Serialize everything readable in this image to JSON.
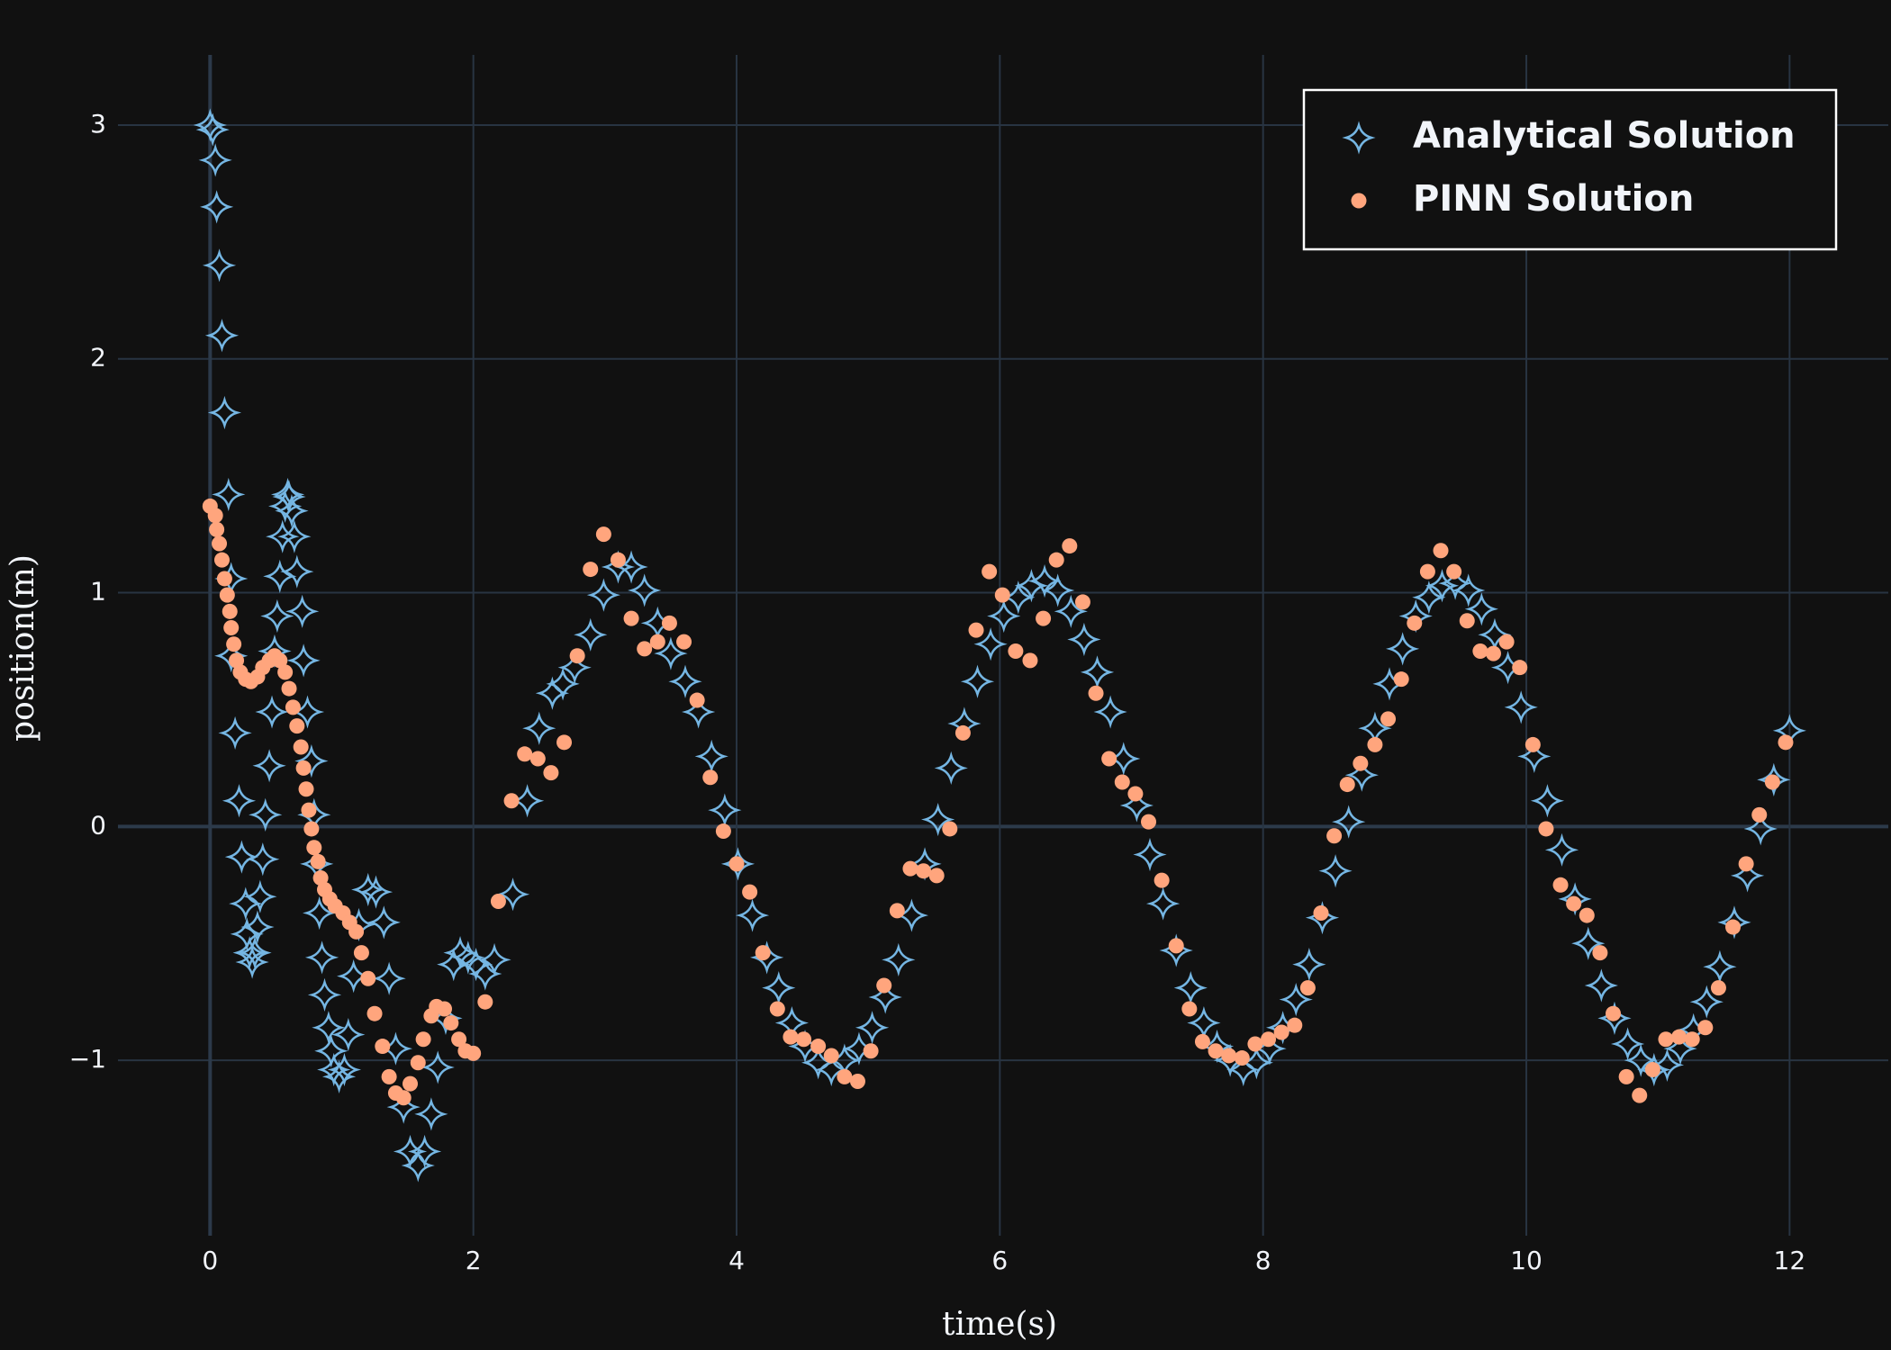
{
  "chart_data": {
    "type": "scatter",
    "x_label": "time(s)",
    "y_label": "position(m)",
    "xlim": [
      -0.7,
      12.75
    ],
    "ylim": [
      -1.75,
      3.3
    ],
    "xticks": [
      0,
      2,
      4,
      6,
      8,
      10,
      12
    ],
    "yticks": [
      {
        "value": -1,
        "label": "−1"
      },
      0,
      1,
      2,
      3
    ],
    "grid": true,
    "legend_position": "upper right",
    "series": [
      {
        "name": "Analytical Solution",
        "color": "#75b6e3",
        "marker": "star",
        "x": [
          0,
          0.02,
          0.04,
          0.05,
          0.07,
          0.09,
          0.11,
          0.14,
          0.16,
          0.16,
          0.19,
          0.22,
          0.24,
          0.27,
          0.28,
          0.3,
          0.32,
          0.34,
          0.36,
          0.38,
          0.4,
          0.42,
          0.45,
          0.47,
          0.49,
          0.51,
          0.53,
          0.55,
          0.57,
          0.59,
          0.6,
          0.62,
          0.64,
          0.66,
          0.7,
          0.71,
          0.74,
          0.77,
          0.79,
          0.81,
          0.83,
          0.85,
          0.87,
          0.9,
          0.92,
          0.94,
          0.98,
          1.02,
          1.05,
          1.09,
          1.13,
          1.2,
          1.26,
          1.32,
          1.36,
          1.41,
          1.47,
          1.52,
          1.58,
          1.63,
          1.68,
          1.73,
          1.79,
          1.85,
          1.9,
          1.96,
          2.02,
          2.09,
          2.16,
          2.3,
          2.41,
          2.5,
          2.6,
          2.68,
          2.77,
          2.89,
          2.99,
          3.1,
          3.2,
          3.3,
          3.4,
          3.5,
          3.61,
          3.71,
          3.81,
          3.91,
          4.01,
          4.12,
          4.23,
          4.32,
          4.42,
          4.52,
          4.62,
          4.72,
          4.82,
          4.93,
          5.03,
          5.13,
          5.23,
          5.33,
          5.43,
          5.53,
          5.63,
          5.73,
          5.83,
          5.93,
          6.03,
          6.14,
          6.24,
          6.34,
          6.44,
          6.54,
          6.64,
          6.74,
          6.84,
          6.94,
          7.04,
          7.14,
          7.24,
          7.34,
          7.45,
          7.55,
          7.65,
          7.75,
          7.85,
          7.95,
          8.05,
          8.15,
          8.25,
          8.35,
          8.45,
          8.55,
          8.65,
          8.75,
          8.85,
          8.96,
          9.06,
          9.16,
          9.26,
          9.36,
          9.46,
          9.56,
          9.66,
          9.76,
          9.86,
          9.96,
          10.06,
          10.16,
          10.27,
          10.37,
          10.47,
          10.57,
          10.67,
          10.77,
          10.87,
          10.97,
          11.07,
          11.17,
          11.27,
          11.37,
          11.47,
          11.58,
          11.68,
          11.78,
          11.88,
          12.0
        ],
        "values": [
          3.0,
          2.98,
          2.85,
          2.65,
          2.4,
          2.1,
          1.77,
          1.42,
          1.06,
          0.73,
          0.4,
          0.11,
          -0.13,
          -0.33,
          -0.46,
          -0.54,
          -0.58,
          -0.54,
          -0.43,
          -0.3,
          -0.14,
          0.05,
          0.26,
          0.49,
          0.75,
          0.9,
          1.07,
          1.24,
          1.37,
          1.42,
          1.41,
          1.35,
          1.24,
          1.09,
          0.92,
          0.71,
          0.49,
          0.28,
          0.05,
          -0.16,
          -0.37,
          -0.56,
          -0.72,
          -0.86,
          -0.96,
          -1.04,
          -1.07,
          -1.04,
          -0.89,
          -0.64,
          -0.42,
          -0.27,
          -0.28,
          -0.41,
          -0.65,
          -0.95,
          -1.2,
          -1.39,
          -1.45,
          -1.39,
          -1.23,
          -1.03,
          -0.82,
          -0.59,
          -0.54,
          -0.56,
          -0.59,
          -0.63,
          -0.57,
          -0.29,
          0.11,
          0.42,
          0.57,
          0.61,
          0.68,
          0.82,
          0.99,
          1.11,
          1.11,
          1.01,
          0.87,
          0.74,
          0.62,
          0.49,
          0.3,
          0.07,
          -0.16,
          -0.38,
          -0.56,
          -0.69,
          -0.84,
          -0.94,
          -1.01,
          -1.04,
          -1.0,
          -0.95,
          -0.86,
          -0.73,
          -0.57,
          -0.38,
          -0.16,
          0.03,
          0.25,
          0.44,
          0.62,
          0.78,
          0.9,
          0.98,
          1.03,
          1.05,
          1.01,
          0.92,
          0.8,
          0.66,
          0.49,
          0.29,
          0.09,
          -0.12,
          -0.33,
          -0.53,
          -0.69,
          -0.84,
          -0.94,
          -1.0,
          -1.04,
          -1.01,
          -0.95,
          -0.86,
          -0.74,
          -0.59,
          -0.39,
          -0.19,
          0.02,
          0.22,
          0.42,
          0.61,
          0.76,
          0.9,
          0.98,
          1.03,
          1.04,
          1.01,
          0.93,
          0.82,
          0.68,
          0.51,
          0.3,
          0.11,
          -0.1,
          -0.31,
          -0.5,
          -0.68,
          -0.82,
          -0.93,
          -1.0,
          -1.04,
          -1.02,
          -0.95,
          -0.87,
          -0.75,
          -0.6,
          -0.41,
          -0.21,
          -0.01,
          0.2,
          0.41
        ]
      },
      {
        "name": "PINN Solution",
        "color": "#ffa57d",
        "marker": "circle",
        "x": [
          0,
          0.04,
          0.05,
          0.07,
          0.09,
          0.11,
          0.13,
          0.15,
          0.16,
          0.18,
          0.2,
          0.23,
          0.27,
          0.31,
          0.36,
          0.4,
          0.45,
          0.49,
          0.53,
          0.57,
          0.6,
          0.63,
          0.66,
          0.69,
          0.71,
          0.73,
          0.75,
          0.77,
          0.79,
          0.82,
          0.84,
          0.87,
          0.91,
          0.95,
          1.01,
          1.06,
          1.11,
          1.15,
          1.2,
          1.25,
          1.31,
          1.36,
          1.41,
          1.47,
          1.52,
          1.58,
          1.62,
          1.68,
          1.72,
          1.78,
          1.83,
          1.89,
          1.94,
          2.0,
          2.09,
          2.19,
          2.29,
          2.39,
          2.49,
          2.59,
          2.69,
          2.79,
          2.89,
          2.99,
          3.1,
          3.2,
          3.3,
          3.4,
          3.49,
          3.6,
          3.7,
          3.8,
          3.9,
          4.0,
          4.1,
          4.2,
          4.31,
          4.41,
          4.51,
          4.62,
          4.72,
          4.82,
          4.92,
          5.02,
          5.12,
          5.22,
          5.32,
          5.42,
          5.52,
          5.62,
          5.72,
          5.82,
          5.92,
          6.02,
          6.12,
          6.23,
          6.33,
          6.43,
          6.53,
          6.63,
          6.73,
          6.83,
          6.93,
          7.03,
          7.13,
          7.23,
          7.34,
          7.44,
          7.54,
          7.64,
          7.74,
          7.84,
          7.94,
          8.04,
          8.14,
          8.24,
          8.34,
          8.44,
          8.54,
          8.64,
          8.74,
          8.85,
          8.95,
          9.05,
          9.15,
          9.25,
          9.35,
          9.45,
          9.55,
          9.65,
          9.75,
          9.85,
          9.95,
          10.05,
          10.15,
          10.26,
          10.36,
          10.46,
          10.56,
          10.66,
          10.76,
          10.86,
          10.96,
          11.06,
          11.16,
          11.26,
          11.36,
          11.46,
          11.57,
          11.67,
          11.77,
          11.87,
          11.97
        ],
        "values": [
          1.37,
          1.33,
          1.27,
          1.21,
          1.14,
          1.06,
          0.99,
          0.92,
          0.85,
          0.78,
          0.71,
          0.66,
          0.63,
          0.62,
          0.64,
          0.68,
          0.71,
          0.73,
          0.71,
          0.66,
          0.59,
          0.51,
          0.43,
          0.34,
          0.25,
          0.16,
          0.07,
          -0.01,
          -0.09,
          -0.15,
          -0.22,
          -0.27,
          -0.31,
          -0.34,
          -0.37,
          -0.41,
          -0.45,
          -0.54,
          -0.65,
          -0.8,
          -0.94,
          -1.07,
          -1.14,
          -1.16,
          -1.1,
          -1.01,
          -0.91,
          -0.81,
          -0.77,
          -0.78,
          -0.84,
          -0.91,
          -0.96,
          -0.97,
          -0.75,
          -0.32,
          0.11,
          0.31,
          0.29,
          0.23,
          0.36,
          0.73,
          1.1,
          1.25,
          1.14,
          0.89,
          0.76,
          0.79,
          0.87,
          0.79,
          0.54,
          0.21,
          -0.02,
          -0.16,
          -0.28,
          -0.54,
          -0.78,
          -0.9,
          -0.91,
          -0.94,
          -0.98,
          -1.07,
          -1.09,
          -0.96,
          -0.68,
          -0.36,
          -0.18,
          -0.19,
          -0.21,
          -0.01,
          0.4,
          0.84,
          1.09,
          0.99,
          0.75,
          0.71,
          0.89,
          1.14,
          1.2,
          0.96,
          0.57,
          0.29,
          0.19,
          0.14,
          0.02,
          -0.23,
          -0.51,
          -0.78,
          -0.92,
          -0.96,
          -0.98,
          -0.99,
          -0.93,
          -0.91,
          -0.88,
          -0.85,
          -0.69,
          -0.37,
          -0.04,
          0.18,
          0.27,
          0.35,
          0.46,
          0.63,
          0.87,
          1.09,
          1.18,
          1.09,
          0.88,
          0.75,
          0.74,
          0.79,
          0.68,
          0.35,
          -0.01,
          -0.25,
          -0.33,
          -0.38,
          -0.54,
          -0.8,
          -1.07,
          -1.15,
          -1.04,
          -0.91,
          -0.9,
          -0.91,
          -0.86,
          -0.69,
          -0.43,
          -0.16,
          0.05,
          0.19,
          0.36
        ]
      }
    ]
  }
}
